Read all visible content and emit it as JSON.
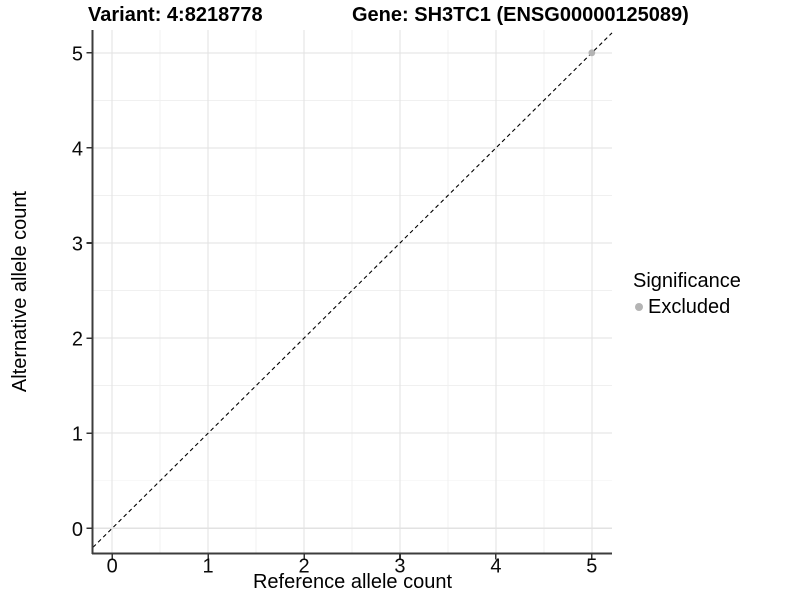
{
  "titles": {
    "variant": "Variant: 4:8218778",
    "gene": "Gene: SH3TC1 (ENSG00000125089)"
  },
  "axes": {
    "x": {
      "label": "Reference allele count"
    },
    "y": {
      "label": "Alternative allele count"
    }
  },
  "legend": {
    "title": "Significance",
    "items": [
      {
        "label": "Excluded",
        "color": "#b4b4b4"
      }
    ]
  },
  "chart_data": {
    "type": "scatter",
    "title_left": "Variant: 4:8218778",
    "title_right": "Gene: SH3TC1 (ENSG00000125089)",
    "xlabel": "Reference allele count",
    "ylabel": "Alternative allele count",
    "xlim": [
      -0.2,
      5.21
    ],
    "ylim": [
      -0.26,
      5.24
    ],
    "x_ticks": [
      0,
      1,
      2,
      3,
      4,
      5
    ],
    "y_ticks": [
      0,
      1,
      2,
      3,
      4,
      5
    ],
    "grid": true,
    "minor_grid": true,
    "legend_position": "right",
    "series": [
      {
        "name": "Excluded",
        "color": "#b4b4b4",
        "marker": "circle",
        "points": [
          [
            5,
            5
          ]
        ]
      }
    ],
    "reference_line": {
      "kind": "identity",
      "slope": 1,
      "intercept": 0,
      "style": "dashed",
      "color": "#000000"
    }
  },
  "style": {
    "grid_major_color": "#e2e2e2",
    "grid_minor_color": "#f0f0f0",
    "axis_line_color": "#3c3c3c",
    "tick_mark_color": "#333333",
    "tick_label_color": "#0a0a0a",
    "point_radius": 3.4,
    "background": "#ffffff"
  }
}
